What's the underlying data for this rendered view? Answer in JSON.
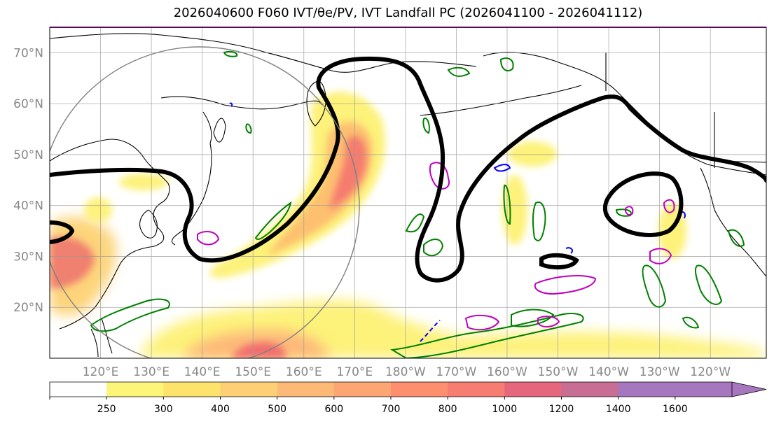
{
  "title": "2026040600 F060 IVT/θe/PV, IVT Landfall PC (2026041100 - 2026041112)",
  "map": {
    "lat_labels": [
      {
        "label": "70°N",
        "lat": 70
      },
      {
        "label": "60°N",
        "lat": 60
      },
      {
        "label": "50°N",
        "lat": 50
      },
      {
        "label": "40°N",
        "lat": 40
      },
      {
        "label": "30°N",
        "lat": 30
      },
      {
        "label": "20°N",
        "lat": 20
      }
    ],
    "lon_labels": [
      {
        "label": "120°E",
        "lon": 120
      },
      {
        "label": "130°E",
        "lon": 130
      },
      {
        "label": "140°E",
        "lon": 140
      },
      {
        "label": "150°E",
        "lon": 150
      },
      {
        "label": "160°E",
        "lon": 160
      },
      {
        "label": "170°E",
        "lon": 170
      },
      {
        "label": "180°W",
        "lon": 180
      },
      {
        "label": "170°W",
        "lon": 190
      },
      {
        "label": "160°W",
        "lon": 200
      },
      {
        "label": "150°W",
        "lon": 210
      },
      {
        "label": "140°W",
        "lon": 220
      },
      {
        "label": "130°W",
        "lon": 230
      },
      {
        "label": "120°W",
        "lon": 240
      }
    ],
    "extent": {
      "lon_min": 110,
      "lon_max": 251,
      "lat_min": 10,
      "lat_max": 75
    },
    "landfall_circle": {
      "center_lon": 140,
      "center_lat": 35,
      "radius_deg": 32
    },
    "colors": {
      "land_line": "#000000",
      "theta_e": "#000000",
      "pv_green": "#008000",
      "pv_magenta": "#bf00bf",
      "pv_blue": "#0000ff",
      "circle": "#808080",
      "frame": "#5a0a5a"
    }
  },
  "colorbar": {
    "ticks": [
      "250",
      "300",
      "400",
      "500",
      "600",
      "700",
      "800",
      "1000",
      "1200",
      "1400",
      "1600"
    ],
    "colors": [
      "#ffffff",
      "#fcf57a",
      "#fde26c",
      "#fdd075",
      "#fdba77",
      "#fda674",
      "#fd8f6e",
      "#f77c72",
      "#e6677d",
      "#c86d93",
      "#a676bf",
      "#a676bf"
    ]
  }
}
